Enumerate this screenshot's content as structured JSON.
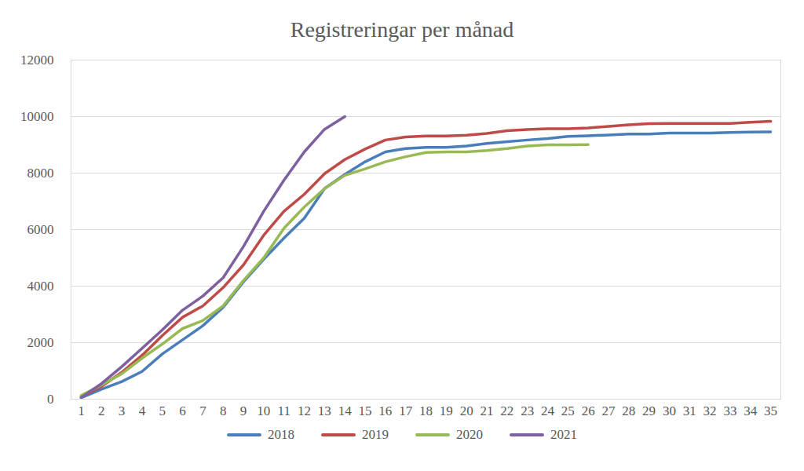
{
  "chart_data": {
    "type": "line",
    "title": "Registreringar per månad",
    "x": [
      1,
      2,
      3,
      4,
      5,
      6,
      7,
      8,
      9,
      10,
      11,
      12,
      13,
      14,
      15,
      16,
      17,
      18,
      19,
      20,
      21,
      22,
      23,
      24,
      25,
      26,
      27,
      28,
      29,
      30,
      31,
      32,
      33,
      34,
      35
    ],
    "xlim": [
      0.5,
      35.5
    ],
    "xticks": [
      1,
      2,
      3,
      4,
      5,
      6,
      7,
      8,
      9,
      10,
      11,
      12,
      13,
      14,
      15,
      16,
      17,
      18,
      19,
      20,
      21,
      22,
      23,
      24,
      25,
      26,
      27,
      28,
      29,
      30,
      31,
      32,
      33,
      34,
      35
    ],
    "ylim": [
      0,
      12000
    ],
    "yticks": [
      0,
      2000,
      4000,
      6000,
      8000,
      10000,
      12000
    ],
    "grid": true,
    "legend": "bottom",
    "series": [
      {
        "name": "2018",
        "color": "#4a7ebb",
        "values": [
          50,
          350,
          620,
          980,
          1600,
          2100,
          2600,
          3250,
          4150,
          4950,
          5700,
          6400,
          7450,
          7950,
          8400,
          8750,
          8870,
          8910,
          8910,
          8960,
          9050,
          9110,
          9170,
          9220,
          9300,
          9320,
          9350,
          9380,
          9380,
          9420,
          9420,
          9420,
          9440,
          9450,
          9460
        ]
      },
      {
        "name": "2019",
        "color": "#be4b48",
        "values": [
          80,
          450,
          950,
          1550,
          2250,
          2900,
          3300,
          3950,
          4750,
          5800,
          6650,
          7250,
          7980,
          8480,
          8850,
          9170,
          9280,
          9310,
          9310,
          9340,
          9400,
          9500,
          9540,
          9570,
          9570,
          9600,
          9650,
          9710,
          9750,
          9760,
          9760,
          9760,
          9760,
          9800,
          9830
        ]
      },
      {
        "name": "2020",
        "color": "#98b954",
        "values": [
          130,
          500,
          900,
          1450,
          1950,
          2500,
          2780,
          3300,
          4200,
          5000,
          6050,
          6800,
          7450,
          7920,
          8150,
          8400,
          8580,
          8730,
          8750,
          8750,
          8800,
          8870,
          8960,
          9000,
          9000,
          9010,
          null,
          null,
          null,
          null,
          null,
          null,
          null,
          null,
          null
        ]
      },
      {
        "name": "2021",
        "color": "#7d60a0",
        "values": [
          60,
          550,
          1150,
          1800,
          2450,
          3150,
          3650,
          4300,
          5400,
          6650,
          7750,
          8750,
          9550,
          10000,
          null,
          null,
          null,
          null,
          null,
          null,
          null,
          null,
          null,
          null,
          null,
          null,
          null,
          null,
          null,
          null,
          null,
          null,
          null,
          null,
          null
        ]
      }
    ]
  }
}
